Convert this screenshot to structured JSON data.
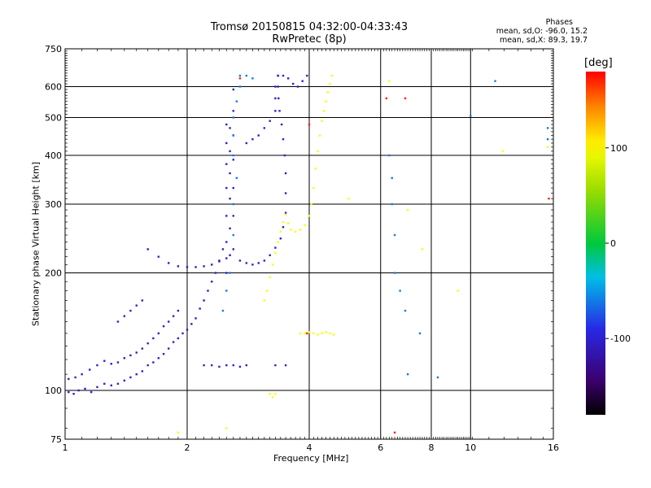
{
  "header": {
    "title_line1": "Tromsø 20150815 04:32:00-04:33:43",
    "title_line2": "RwPretec (8p)"
  },
  "phases_box": {
    "heading": "Phases",
    "line_o": "mean, sd,O: -96.0, 15.2",
    "line_x": "mean, sd,X:  89.3, 19.7"
  },
  "colorbar": {
    "unit_label": "[deg]",
    "range": [
      -180,
      180
    ],
    "tick_labels": [
      "100",
      "0",
      "-100"
    ],
    "tick_values": [
      100,
      0,
      -100
    ]
  },
  "chart_data": {
    "type": "scatter",
    "title": "Tromsø 20150815 04:32:00-04:33:43",
    "subtitle": "RwPretec (8p)",
    "xlabel": "Frequency [MHz]",
    "ylabel": "Stationary phase Virtual Height [km]",
    "xscale": "log",
    "yscale": "log",
    "xlim": [
      1,
      16
    ],
    "ylim": [
      75,
      750
    ],
    "x_ticks": [
      1,
      2,
      4,
      6,
      8,
      10,
      16
    ],
    "x_tick_labels": [
      "1",
      "2",
      "4",
      "6",
      "8",
      "10",
      "16"
    ],
    "y_ticks": [
      75,
      100,
      200,
      300,
      400,
      500,
      600,
      750
    ],
    "y_tick_labels": [
      "75",
      "100",
      "200",
      "300",
      "400",
      "500",
      "600",
      "750"
    ],
    "grid": true,
    "color_dimension": "phase [deg]",
    "series": [
      {
        "color_phase": -100,
        "points": [
          [
            1.02,
            99
          ],
          [
            1.05,
            98
          ],
          [
            1.08,
            100
          ],
          [
            1.12,
            101
          ],
          [
            1.16,
            99
          ],
          [
            1.2,
            102
          ],
          [
            1.25,
            104
          ],
          [
            1.3,
            103
          ],
          [
            1.35,
            104
          ],
          [
            1.4,
            106
          ],
          [
            1.45,
            108
          ],
          [
            1.5,
            110
          ],
          [
            1.55,
            112
          ],
          [
            1.6,
            116
          ],
          [
            1.65,
            118
          ],
          [
            1.7,
            121
          ],
          [
            1.75,
            124
          ],
          [
            1.8,
            128
          ],
          [
            1.85,
            133
          ],
          [
            1.9,
            136
          ],
          [
            1.95,
            140
          ],
          [
            2.0,
            143
          ],
          [
            2.05,
            148
          ],
          [
            2.1,
            153
          ],
          [
            2.15,
            162
          ],
          [
            2.2,
            170
          ],
          [
            2.25,
            180
          ],
          [
            2.3,
            190
          ],
          [
            2.35,
            200
          ],
          [
            2.4,
            215
          ],
          [
            2.45,
            230
          ]
        ]
      },
      {
        "color_phase": -100,
        "points": [
          [
            1.02,
            107
          ],
          [
            1.06,
            108
          ],
          [
            1.1,
            110
          ],
          [
            1.15,
            113
          ],
          [
            1.2,
            116
          ],
          [
            1.25,
            119
          ],
          [
            1.3,
            117
          ],
          [
            1.35,
            118
          ],
          [
            1.4,
            121
          ],
          [
            1.45,
            123
          ],
          [
            1.5,
            125
          ],
          [
            1.55,
            128
          ],
          [
            1.6,
            132
          ],
          [
            1.65,
            136
          ],
          [
            1.7,
            140
          ],
          [
            1.75,
            146
          ],
          [
            1.8,
            150
          ],
          [
            1.85,
            155
          ],
          [
            1.9,
            160
          ]
        ]
      },
      {
        "color_phase": -100,
        "points": [
          [
            1.35,
            150
          ],
          [
            1.4,
            155
          ],
          [
            1.45,
            160
          ],
          [
            1.5,
            165
          ],
          [
            1.55,
            170
          ]
        ]
      },
      {
        "color_phase": -100,
        "points": [
          [
            1.6,
            230
          ],
          [
            1.7,
            220
          ],
          [
            1.8,
            212
          ],
          [
            1.9,
            208
          ],
          [
            2.0,
            207
          ],
          [
            2.1,
            207
          ],
          [
            2.2,
            208
          ],
          [
            2.3,
            210
          ],
          [
            2.4,
            214
          ],
          [
            2.5,
            218
          ],
          [
            2.55,
            222
          ]
        ]
      },
      {
        "color_phase": -100,
        "points": [
          [
            2.5,
            200
          ],
          [
            2.5,
            240
          ],
          [
            2.5,
            280
          ],
          [
            2.5,
            330
          ],
          [
            2.5,
            380
          ],
          [
            2.5,
            430
          ],
          [
            2.5,
            480
          ],
          [
            2.55,
            260
          ],
          [
            2.55,
            310
          ],
          [
            2.55,
            360
          ],
          [
            2.55,
            410
          ],
          [
            2.55,
            470
          ],
          [
            2.6,
            230
          ],
          [
            2.6,
            280
          ],
          [
            2.6,
            330
          ],
          [
            2.6,
            390
          ],
          [
            2.6,
            450
          ],
          [
            2.6,
            520
          ],
          [
            2.6,
            590
          ]
        ]
      },
      {
        "color_phase": -60,
        "points": [
          [
            2.45,
            160
          ],
          [
            2.5,
            180
          ],
          [
            2.55,
            200
          ],
          [
            2.6,
            250
          ],
          [
            2.6,
            300
          ],
          [
            2.65,
            350
          ],
          [
            2.6,
            400
          ],
          [
            2.6,
            450
          ],
          [
            2.6,
            500
          ],
          [
            2.65,
            550
          ],
          [
            2.7,
            600
          ],
          [
            2.7,
            640
          ],
          [
            2.8,
            640
          ],
          [
            2.9,
            630
          ]
        ]
      },
      {
        "color_phase": -100,
        "points": [
          [
            2.7,
            215
          ],
          [
            2.8,
            212
          ],
          [
            2.9,
            210
          ],
          [
            3.0,
            212
          ],
          [
            3.1,
            215
          ],
          [
            3.2,
            222
          ],
          [
            3.3,
            232
          ],
          [
            3.4,
            245
          ],
          [
            3.45,
            262
          ],
          [
            3.5,
            285
          ],
          [
            3.5,
            320
          ],
          [
            3.5,
            360
          ],
          [
            3.48,
            400
          ],
          [
            3.45,
            440
          ],
          [
            3.42,
            480
          ],
          [
            3.38,
            520
          ],
          [
            3.36,
            560
          ],
          [
            3.35,
            600
          ],
          [
            3.35,
            640
          ]
        ]
      },
      {
        "color_phase": -100,
        "points": [
          [
            2.8,
            430
          ],
          [
            2.9,
            440
          ],
          [
            3.0,
            450
          ],
          [
            3.1,
            470
          ],
          [
            3.2,
            490
          ],
          [
            3.3,
            520
          ],
          [
            3.3,
            560
          ],
          [
            3.3,
            600
          ],
          [
            3.35,
            640
          ],
          [
            3.45,
            640
          ],
          [
            3.55,
            630
          ],
          [
            3.65,
            610
          ],
          [
            3.75,
            600
          ],
          [
            3.85,
            620
          ],
          [
            3.95,
            640
          ]
        ]
      },
      {
        "color_phase": 100,
        "points": [
          [
            3.1,
            170
          ],
          [
            3.15,
            180
          ],
          [
            3.2,
            195
          ],
          [
            3.25,
            210
          ],
          [
            3.3,
            225
          ],
          [
            3.35,
            240
          ],
          [
            3.4,
            255
          ],
          [
            3.45,
            270
          ],
          [
            3.5,
            282
          ],
          [
            3.55,
            268
          ],
          [
            3.6,
            258
          ],
          [
            3.7,
            255
          ],
          [
            3.8,
            258
          ],
          [
            3.9,
            265
          ],
          [
            4.0,
            280
          ],
          [
            4.05,
            300
          ],
          [
            4.1,
            330
          ],
          [
            4.15,
            370
          ],
          [
            4.2,
            410
          ],
          [
            4.25,
            450
          ],
          [
            4.3,
            490
          ],
          [
            4.35,
            520
          ],
          [
            4.4,
            550
          ],
          [
            4.45,
            580
          ],
          [
            4.5,
            610
          ],
          [
            4.55,
            640
          ]
        ]
      },
      {
        "color_phase": 100,
        "points": [
          [
            3.3,
            98
          ],
          [
            3.2,
            98
          ],
          [
            3.25,
            96
          ]
        ]
      },
      {
        "color_phase": 100,
        "points": [
          [
            3.8,
            140
          ],
          [
            3.9,
            140
          ],
          [
            4.0,
            141
          ],
          [
            4.1,
            140
          ],
          [
            4.2,
            139
          ],
          [
            4.3,
            140
          ],
          [
            4.4,
            141
          ],
          [
            4.5,
            140
          ],
          [
            4.6,
            139
          ]
        ]
      },
      {
        "color_phase": -100,
        "points": [
          [
            2.2,
            116
          ],
          [
            2.3,
            116
          ],
          [
            2.4,
            115
          ],
          [
            2.5,
            116
          ],
          [
            2.6,
            116
          ],
          [
            2.7,
            115
          ],
          [
            2.8,
            116
          ],
          [
            3.3,
            116
          ],
          [
            3.5,
            116
          ]
        ]
      },
      {
        "color_phase": 100,
        "points": [
          [
            1.9,
            78
          ],
          [
            2.5,
            80
          ],
          [
            5.0,
            310
          ],
          [
            6.3,
            620
          ],
          [
            7.0,
            290
          ],
          [
            7.6,
            230
          ],
          [
            9.3,
            180
          ],
          [
            12.0,
            410
          ],
          [
            15.5,
            420
          ]
        ]
      },
      {
        "color_phase": -60,
        "points": [
          [
            6.3,
            400
          ],
          [
            6.4,
            350
          ],
          [
            6.4,
            300
          ],
          [
            6.5,
            250
          ],
          [
            6.5,
            200
          ],
          [
            6.7,
            180
          ],
          [
            6.9,
            160
          ],
          [
            7.0,
            110
          ],
          [
            7.5,
            140
          ],
          [
            8.3,
            108
          ],
          [
            10.0,
            505
          ],
          [
            11.5,
            620
          ],
          [
            15.5,
            470
          ],
          [
            15.5,
            440
          ]
        ]
      },
      {
        "color_phase": 170,
        "points": [
          [
            3.95,
            140
          ],
          [
            6.5,
            78
          ],
          [
            4.0,
            480
          ],
          [
            6.2,
            560
          ],
          [
            6.9,
            560
          ],
          [
            15.6,
            310
          ],
          [
            2.7,
            630
          ]
        ]
      }
    ]
  }
}
